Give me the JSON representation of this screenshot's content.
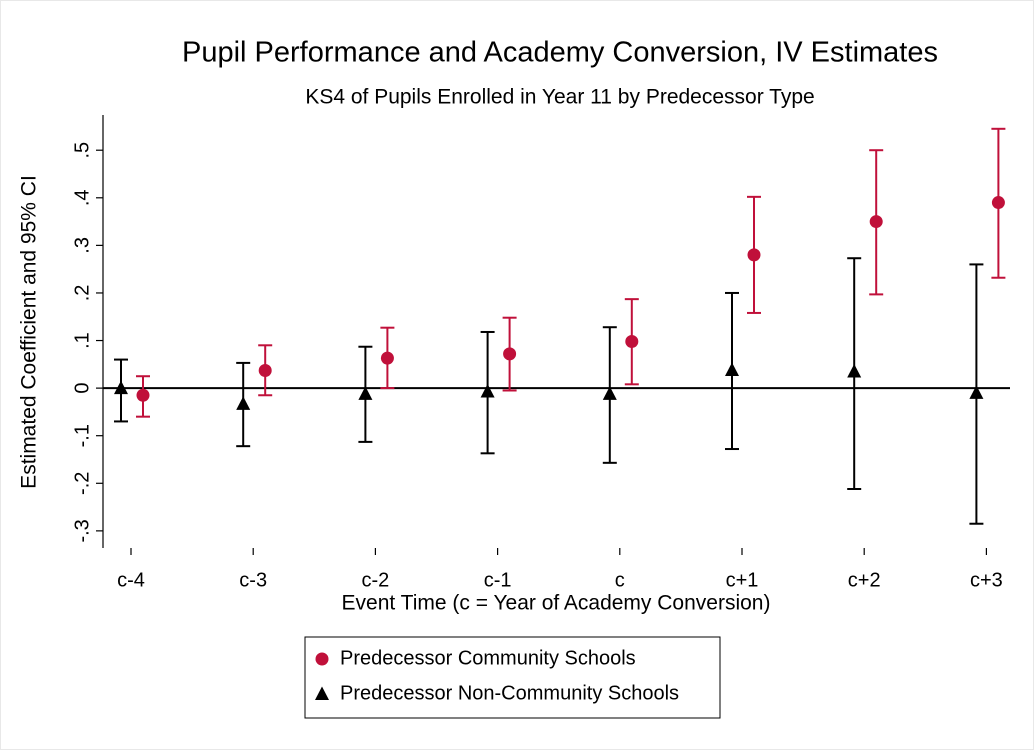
{
  "chart_data": {
    "type": "errorbar",
    "title": "Pupil Performance and Academy Conversion, IV Estimates",
    "subtitle": "KS4 of Pupils Enrolled in Year 11 by Predecessor Type",
    "x_label": "Event Time (c = Year of Academy Conversion)",
    "y_label": "Estimated Coefficient and 95% CI",
    "categories": [
      "c-4",
      "c-3",
      "c-2",
      "c-1",
      "c",
      "c+1",
      "c+2",
      "c+3"
    ],
    "series": [
      {
        "name": "Predecessor Community Schools",
        "color": "#c0103a",
        "marker": "circle",
        "values": [
          -0.015,
          0.037,
          0.063,
          0.072,
          0.098,
          0.28,
          0.35,
          0.39
        ],
        "lower": [
          -0.06,
          -0.015,
          0.0,
          -0.005,
          0.008,
          0.158,
          0.197,
          0.232
        ],
        "upper": [
          0.025,
          0.09,
          0.127,
          0.148,
          0.187,
          0.402,
          0.5,
          0.545
        ]
      },
      {
        "name": "Predecessor Non-Community Schools",
        "color": "#000000",
        "marker": "triangle",
        "values": [
          0.0,
          -0.033,
          -0.012,
          -0.007,
          -0.012,
          0.038,
          0.035,
          -0.01
        ],
        "lower": [
          -0.07,
          -0.122,
          -0.113,
          -0.137,
          -0.157,
          -0.128,
          -0.212,
          -0.285
        ],
        "upper": [
          0.06,
          0.053,
          0.087,
          0.118,
          0.128,
          0.2,
          0.273,
          0.26
        ]
      }
    ],
    "ylim": [
      -0.336,
      0.574
    ],
    "yticks": [
      {
        "value": -0.3,
        "label": "-.3"
      },
      {
        "value": -0.2,
        "label": "-.2"
      },
      {
        "value": -0.1,
        "label": "-.1"
      },
      0,
      {
        "value": 0.1,
        "label": ".1"
      },
      {
        "value": 0.2,
        "label": ".2"
      },
      {
        "value": 0.3,
        "label": ".3"
      },
      {
        "value": 0.4,
        "label": ".4"
      },
      {
        "value": 0.5,
        "label": ".5"
      }
    ],
    "zero_line": true
  }
}
